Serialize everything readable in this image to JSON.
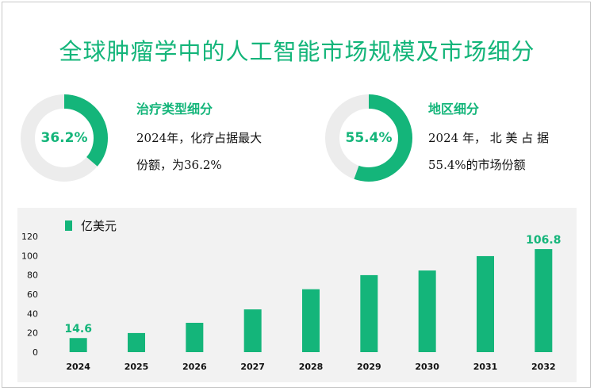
{
  "title": "全球肿瘤学中的人工智能市场规模及市场细分",
  "segments": [
    {
      "value_label": "36.2%",
      "share": 0.362,
      "title": "治疗类型细分",
      "desc_line1": "2024年，化疗占据最大",
      "desc_line2": "份额，为36.2%"
    },
    {
      "value_label": "55.4%",
      "share": 0.554,
      "title": "地区细分",
      "desc_line1": "2024 年， 北 美 占 据",
      "desc_line2": "55.4%的市场份额"
    }
  ],
  "colors": {
    "accent": "#14b57a",
    "track": "#ececec",
    "panel": "#f2f2f2"
  },
  "chart_data": {
    "type": "bar",
    "legend": "亿美元",
    "categories": [
      "2024",
      "2025",
      "2026",
      "2027",
      "2028",
      "2029",
      "2030",
      "2031",
      "2032"
    ],
    "values": [
      14.6,
      19.8,
      30.4,
      44.3,
      65.2,
      79.8,
      84.6,
      99.5,
      106.8
    ],
    "data_labels": [
      "14.6",
      "",
      "",
      "",
      "",
      "",
      "",
      "",
      "106.8"
    ],
    "yticks": [
      "0",
      "20",
      "40",
      "60",
      "80",
      "100",
      "120"
    ],
    "ylim": [
      0,
      120
    ]
  }
}
